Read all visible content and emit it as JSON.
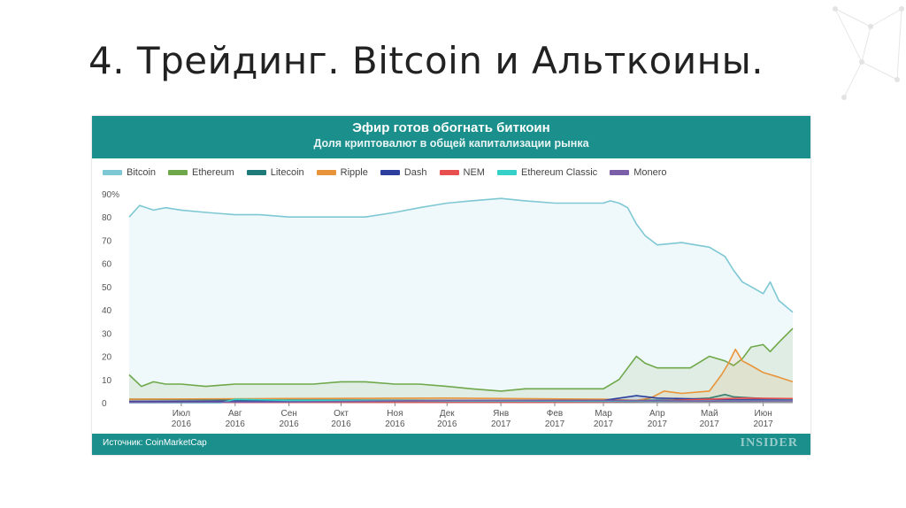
{
  "slide": {
    "title": "4. Трейдинг. Bitcoin и Альткоины."
  },
  "chart_data": {
    "type": "area",
    "title": "Эфир готов обогнать биткоин",
    "subtitle": "Доля криптовалют в общей капитализации рынка",
    "source": "Источник: CoinMarketCap",
    "brand": "INSIDER",
    "y_unit": "%",
    "ylim": [
      0,
      90
    ],
    "yticks": [
      0,
      10,
      20,
      30,
      40,
      50,
      60,
      70,
      80,
      90
    ],
    "ytick_labels": [
      "0",
      "10",
      "20",
      "30",
      "40",
      "50",
      "60",
      "70",
      "80",
      "90%"
    ],
    "x_start": "2016-06-01",
    "x_end": "2017-06-18",
    "x_ticks": [
      {
        "date": "2016-07-01",
        "label1": "Июл",
        "label2": "2016"
      },
      {
        "date": "2016-08-01",
        "label1": "Авг",
        "label2": "2016"
      },
      {
        "date": "2016-09-01",
        "label1": "Сен",
        "label2": "2016"
      },
      {
        "date": "2016-10-01",
        "label1": "Окт",
        "label2": "2016"
      },
      {
        "date": "2016-11-01",
        "label1": "Ноя",
        "label2": "2016"
      },
      {
        "date": "2016-12-01",
        "label1": "Дек",
        "label2": "2016"
      },
      {
        "date": "2017-01-01",
        "label1": "Янв",
        "label2": "2017"
      },
      {
        "date": "2017-02-01",
        "label1": "Фев",
        "label2": "2017"
      },
      {
        "date": "2017-03-01",
        "label1": "Мар",
        "label2": "2017"
      },
      {
        "date": "2017-04-01",
        "label1": "Апр",
        "label2": "2017"
      },
      {
        "date": "2017-05-01",
        "label1": "Май",
        "label2": "2017"
      },
      {
        "date": "2017-06-01",
        "label1": "Июн",
        "label2": "2017"
      }
    ],
    "grid": false,
    "legend_position": "top",
    "series": [
      {
        "name": "Bitcoin",
        "color": "#7ec8d4",
        "x": [
          "2016-06-01",
          "2016-06-07",
          "2016-06-15",
          "2016-06-22",
          "2016-07-01",
          "2016-07-15",
          "2016-08-01",
          "2016-08-15",
          "2016-09-01",
          "2016-09-15",
          "2016-10-01",
          "2016-10-15",
          "2016-11-01",
          "2016-11-15",
          "2016-12-01",
          "2016-12-15",
          "2017-01-01",
          "2017-01-15",
          "2017-02-01",
          "2017-02-15",
          "2017-03-01",
          "2017-03-05",
          "2017-03-10",
          "2017-03-15",
          "2017-03-20",
          "2017-03-25",
          "2017-04-01",
          "2017-04-15",
          "2017-05-01",
          "2017-05-10",
          "2017-05-15",
          "2017-05-20",
          "2017-05-25",
          "2017-06-01",
          "2017-06-05",
          "2017-06-10",
          "2017-06-18"
        ],
        "y": [
          80,
          85,
          83,
          84,
          83,
          82,
          81,
          81,
          80,
          80,
          80,
          80,
          82,
          84,
          86,
          87,
          88,
          87,
          86,
          86,
          86,
          87,
          86,
          84,
          77,
          72,
          68,
          69,
          67,
          63,
          57,
          52,
          50,
          47,
          52,
          44,
          39
        ]
      },
      {
        "name": "Ethereum",
        "color": "#6fa84a",
        "x": [
          "2016-06-01",
          "2016-06-08",
          "2016-06-15",
          "2016-06-22",
          "2016-07-01",
          "2016-07-15",
          "2016-08-01",
          "2016-08-15",
          "2016-09-01",
          "2016-09-15",
          "2016-10-01",
          "2016-10-15",
          "2016-11-01",
          "2016-11-15",
          "2016-12-01",
          "2016-12-15",
          "2017-01-01",
          "2017-01-15",
          "2017-02-01",
          "2017-02-15",
          "2017-03-01",
          "2017-03-10",
          "2017-03-15",
          "2017-03-20",
          "2017-03-25",
          "2017-04-01",
          "2017-04-10",
          "2017-04-20",
          "2017-05-01",
          "2017-05-10",
          "2017-05-15",
          "2017-05-20",
          "2017-05-25",
          "2017-06-01",
          "2017-06-05",
          "2017-06-10",
          "2017-06-18"
        ],
        "y": [
          12,
          7,
          9,
          8,
          8,
          7,
          8,
          8,
          8,
          8,
          9,
          9,
          8,
          8,
          7,
          6,
          5,
          6,
          6,
          6,
          6,
          10,
          15,
          20,
          17,
          15,
          15,
          15,
          20,
          18,
          16,
          19,
          24,
          25,
          22,
          26,
          32
        ]
      },
      {
        "name": "Litecoin",
        "color": "#1f7a7a",
        "x": [
          "2016-06-01",
          "2016-09-01",
          "2016-12-01",
          "2017-03-01",
          "2017-03-20",
          "2017-04-10",
          "2017-05-01",
          "2017-05-10",
          "2017-05-15",
          "2017-06-01",
          "2017-06-18"
        ],
        "y": [
          1.5,
          1.2,
          1.0,
          1.0,
          1.0,
          1.2,
          2.0,
          3.5,
          2.5,
          1.8,
          1.7
        ]
      },
      {
        "name": "Ripple",
        "color": "#e8943a",
        "x": [
          "2016-06-01",
          "2016-09-01",
          "2016-12-01",
          "2017-03-01",
          "2017-03-20",
          "2017-03-28",
          "2017-04-05",
          "2017-04-15",
          "2017-05-01",
          "2017-05-08",
          "2017-05-12",
          "2017-05-16",
          "2017-05-20",
          "2017-05-25",
          "2017-06-01",
          "2017-06-10",
          "2017-06-18"
        ],
        "y": [
          1.5,
          1.8,
          2.0,
          1.5,
          1.0,
          2,
          5,
          4,
          5,
          12,
          17,
          23,
          18,
          16,
          13,
          11,
          9
        ]
      },
      {
        "name": "Dash",
        "color": "#2c3e9e",
        "x": [
          "2016-06-01",
          "2016-12-01",
          "2017-03-01",
          "2017-03-20",
          "2017-04-01",
          "2017-05-01",
          "2017-05-15",
          "2017-06-01",
          "2017-06-18"
        ],
        "y": [
          0.6,
          0.8,
          1.0,
          3.0,
          2.0,
          1.5,
          1.2,
          1.5,
          1.4
        ]
      },
      {
        "name": "NEM",
        "color": "#e85050",
        "x": [
          "2016-06-01",
          "2017-03-01",
          "2017-04-01",
          "2017-05-01",
          "2017-05-20",
          "2017-06-18"
        ],
        "y": [
          0.1,
          0.2,
          0.8,
          1.5,
          2.0,
          1.8
        ]
      },
      {
        "name": "Ethereum Classic",
        "color": "#35d0c8",
        "x": [
          "2016-06-01",
          "2016-07-24",
          "2016-08-01",
          "2016-09-01",
          "2016-12-01",
          "2017-03-01",
          "2017-05-01",
          "2017-06-18"
        ],
        "y": [
          0,
          0,
          1.5,
          1.0,
          0.8,
          0.6,
          0.8,
          1.0
        ]
      },
      {
        "name": "Monero",
        "color": "#7a5fa8",
        "x": [
          "2016-06-01",
          "2016-09-01",
          "2016-12-01",
          "2017-03-01",
          "2017-05-01",
          "2017-06-18"
        ],
        "y": [
          0.1,
          0.3,
          1.0,
          1.0,
          0.7,
          0.8
        ]
      }
    ]
  }
}
